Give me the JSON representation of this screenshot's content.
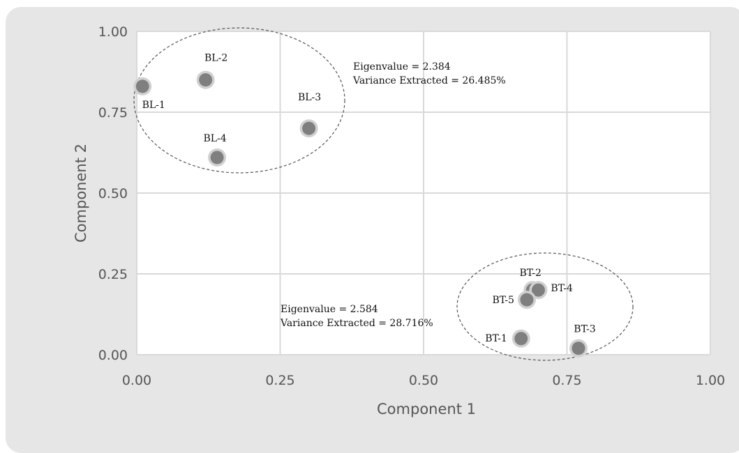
{
  "chart_data": {
    "type": "scatter",
    "title": "",
    "xlabel": "Component 1",
    "ylabel": "Component 2",
    "xlim": [
      0,
      1
    ],
    "ylim": [
      0,
      1
    ],
    "xticks": [
      "0.00",
      "0.25",
      "0.50",
      "0.75",
      "1.00"
    ],
    "yticks": [
      "0.00",
      "0.25",
      "0.50",
      "0.75",
      "1.00"
    ],
    "grid": true,
    "legend": "none",
    "marker_color": "#7f7f7f",
    "marker_halo_color": "#d0d0d0",
    "points": [
      {
        "label": "BL-1",
        "x": 0.01,
        "y": 0.83
      },
      {
        "label": "BL-2",
        "x": 0.12,
        "y": 0.85
      },
      {
        "label": "BL-3",
        "x": 0.3,
        "y": 0.7
      },
      {
        "label": "BL-4",
        "x": 0.14,
        "y": 0.61
      },
      {
        "label": "BT-1",
        "x": 0.67,
        "y": 0.05
      },
      {
        "label": "BT-2",
        "x": 0.69,
        "y": 0.2
      },
      {
        "label": "BT-3",
        "x": 0.77,
        "y": 0.02
      },
      {
        "label": "BT-4",
        "x": 0.7,
        "y": 0.2
      },
      {
        "label": "BT-5",
        "x": 0.68,
        "y": 0.17
      }
    ],
    "annotations": [
      {
        "group": "BL",
        "eigenvalue": "Eigenvalue = 2.384",
        "variance": "Variance Extracted = 26.485%"
      },
      {
        "group": "BT",
        "eigenvalue": "Eigenvalue = 2.584",
        "variance": "Variance Extracted = 28.716%"
      }
    ]
  }
}
